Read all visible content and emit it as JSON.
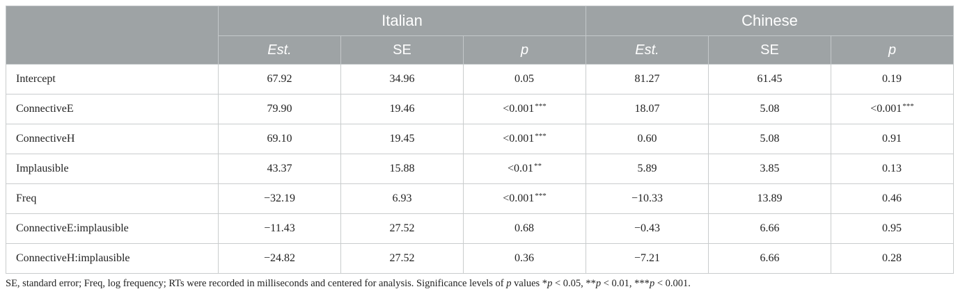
{
  "table": {
    "groups": [
      {
        "label": "Italian"
      },
      {
        "label": "Chinese"
      }
    ],
    "columns": {
      "est": "Est.",
      "se": "SE",
      "p": "p"
    },
    "rows": [
      {
        "label": "Intercept",
        "it_est": "67.92",
        "it_se": "34.96",
        "it_p": "0.05",
        "it_sig": "",
        "cn_est": "81.27",
        "cn_se": "61.45",
        "cn_p": "0.19",
        "cn_sig": ""
      },
      {
        "label": "ConnectiveE",
        "it_est": "79.90",
        "it_se": "19.46",
        "it_p": "<0.001",
        "it_sig": "***",
        "cn_est": "18.07",
        "cn_se": "5.08",
        "cn_p": "<0.001",
        "cn_sig": "***"
      },
      {
        "label": "ConnectiveH",
        "it_est": "69.10",
        "it_se": "19.45",
        "it_p": "<0.001",
        "it_sig": "***",
        "cn_est": "0.60",
        "cn_se": "5.08",
        "cn_p": "0.91",
        "cn_sig": ""
      },
      {
        "label": "Implausible",
        "it_est": "43.37",
        "it_se": "15.88",
        "it_p": "<0.01",
        "it_sig": "**",
        "cn_est": "5.89",
        "cn_se": "3.85",
        "cn_p": "0.13",
        "cn_sig": ""
      },
      {
        "label": "Freq",
        "it_est": "−32.19",
        "it_se": "6.93",
        "it_p": "<0.001",
        "it_sig": "***",
        "cn_est": "−10.33",
        "cn_se": "13.89",
        "cn_p": "0.46",
        "cn_sig": ""
      },
      {
        "label": "ConnectiveE:implausible",
        "it_est": "−11.43",
        "it_se": "27.52",
        "it_p": "0.68",
        "it_sig": "",
        "cn_est": "−0.43",
        "cn_se": "6.66",
        "cn_p": "0.95",
        "cn_sig": ""
      },
      {
        "label": "ConnectiveH:implausible",
        "it_est": "−24.82",
        "it_se": "27.52",
        "it_p": "0.36",
        "it_sig": "",
        "cn_est": "−7.21",
        "cn_se": "6.66",
        "cn_p": "0.28",
        "cn_sig": ""
      }
    ]
  },
  "footnote": {
    "text_a": "SE, standard error; Freq, log frequency; RTs were recorded in milliseconds and centered for analysis. Significance levels of ",
    "p1": "p",
    "text_b": " values *",
    "p2": "p",
    "text_c": " < 0.05, **",
    "p3": "p",
    "text_d": " < 0.01, ***",
    "p4": "p",
    "text_e": " < 0.001."
  }
}
